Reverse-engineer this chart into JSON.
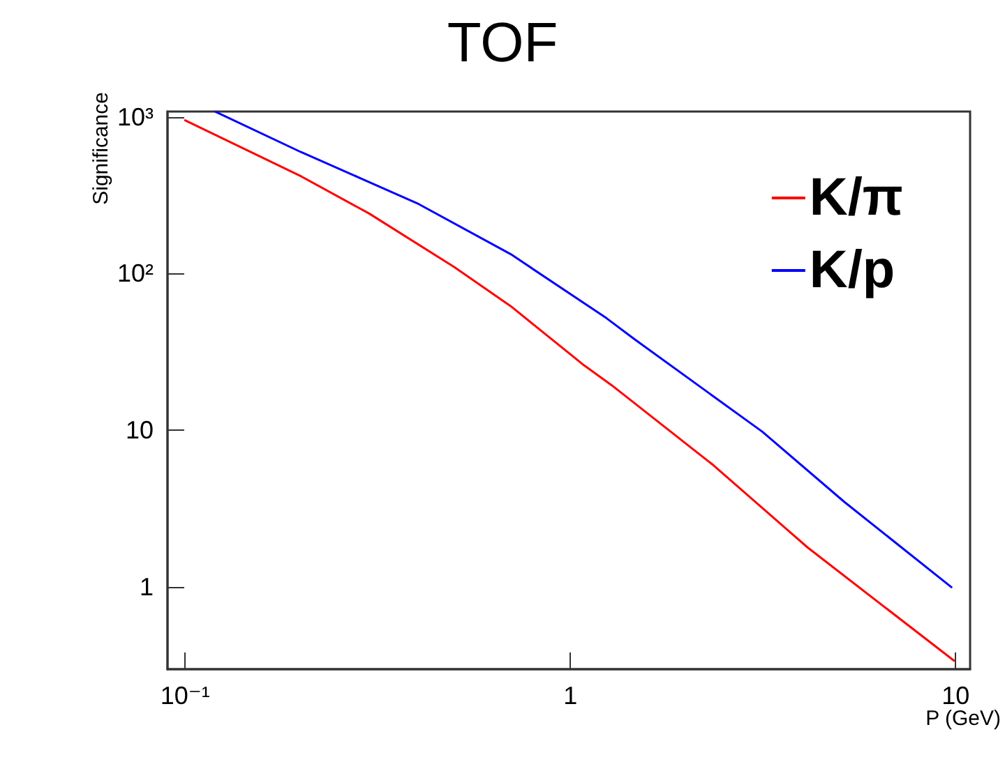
{
  "chart_data": {
    "type": "line",
    "title": "TOF",
    "xlabel": "P (GeV)",
    "ylabel": "Significance",
    "log": "xy",
    "xlim": [
      0.09,
      10.9
    ],
    "ylim": [
      0.3,
      1080
    ],
    "xticks": [
      {
        "value": 0.1,
        "label": "10⁻¹"
      },
      1,
      10
    ],
    "yticks": [
      1,
      10,
      {
        "value": 100,
        "label": "10²"
      },
      {
        "value": 1000,
        "label": "10³"
      }
    ],
    "grid": false,
    "legend": "top right",
    "marker": "none",
    "line_style": "solid",
    "series": [
      {
        "name": "K/π",
        "color": "#ff0000",
        "x": [
          0.1,
          0.2,
          0.3,
          0.5,
          0.7,
          1.085,
          1.28,
          2.33,
          4.13,
          9.9
        ],
        "values": [
          950,
          417,
          242,
          110,
          62,
          26,
          19.4,
          6.1,
          1.79,
          0.34
        ]
      },
      {
        "name": "K/p",
        "color": "#0000ff",
        "x": [
          0.12,
          0.2,
          0.4,
          0.7,
          1.24,
          1.47,
          3.15,
          5.14,
          9.75
        ],
        "values": [
          1075,
          595,
          281,
          133,
          52,
          38,
          9.8,
          3.5,
          1.0
        ]
      }
    ]
  }
}
